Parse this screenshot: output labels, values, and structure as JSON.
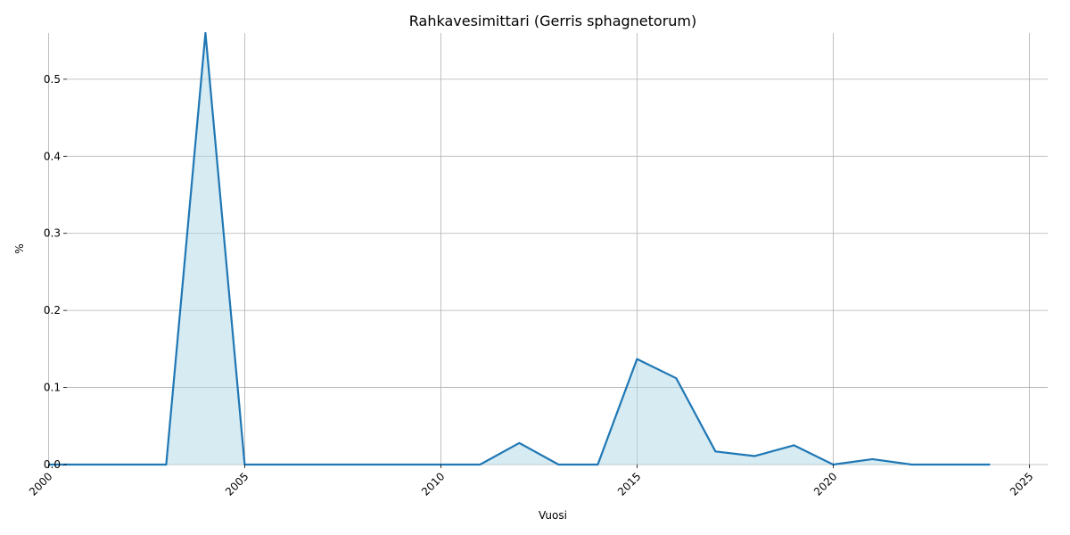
{
  "chart_data": {
    "type": "area",
    "title": "Rahkavesimittari (Gerris sphagnetorum)",
    "xlabel": "Vuosi",
    "ylabel": "%",
    "xlim": [
      2000,
      2025
    ],
    "ylim": [
      0,
      0.56
    ],
    "xticks": [
      2000,
      2005,
      2010,
      2015,
      2020,
      2025
    ],
    "yticks": [
      0.0,
      0.1,
      0.2,
      0.3,
      0.4,
      0.5
    ],
    "ytick_labels": [
      "0.0",
      "0.1",
      "0.2",
      "0.3",
      "0.4",
      "0.5"
    ],
    "grid": true,
    "line_color": "#1f77b4",
    "fill_color": "#add8e6",
    "x": [
      2000,
      2001,
      2002,
      2003,
      2004,
      2005,
      2006,
      2007,
      2008,
      2009,
      2010,
      2011,
      2012,
      2013,
      2014,
      2015,
      2016,
      2017,
      2018,
      2019,
      2020,
      2021,
      2022,
      2023,
      2024
    ],
    "values": [
      0,
      0,
      0,
      0,
      0.56,
      0,
      0,
      0,
      0,
      0,
      0,
      0,
      0.028,
      0,
      0,
      0.137,
      0.112,
      0.017,
      0.011,
      0.025,
      0,
      0.007,
      0,
      0,
      0
    ]
  }
}
